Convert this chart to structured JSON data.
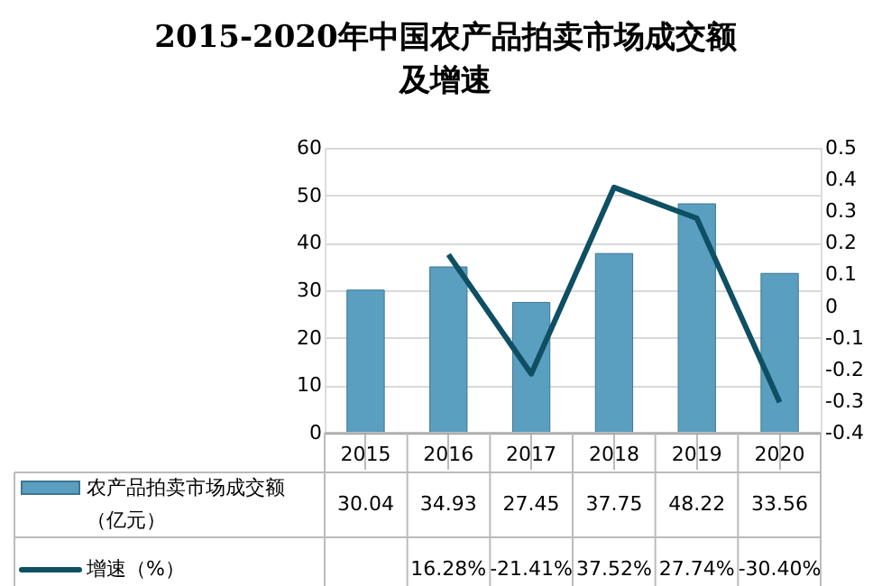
{
  "chart_data": {
    "type": "bar",
    "title": "2015-2020年中国农产品拍卖市场成交额及增速",
    "categories": [
      "2015",
      "2016",
      "2017",
      "2018",
      "2019",
      "2020"
    ],
    "series": [
      {
        "name": "农产品拍卖市场成交额（亿元）",
        "color": "#5a9ec0",
        "values": [
          30.04,
          34.93,
          27.45,
          37.75,
          48.22,
          33.56
        ]
      },
      {
        "name": "增速（%）",
        "type": "line",
        "axis": "y2",
        "color": "#0e4f63",
        "values": [
          null,
          0.1628,
          -0.2141,
          0.3752,
          0.2774,
          -0.304
        ],
        "value_labels": [
          null,
          "16.28%",
          "-21.41%",
          "37.52%",
          "27.74%",
          "-30.40%"
        ]
      }
    ],
    "data_labels": true,
    "ylim": [
      0,
      60
    ],
    "yticks": [
      0,
      10,
      20,
      30,
      40,
      50,
      60
    ],
    "y2lim": [
      -0.4,
      0.5
    ],
    "y2ticks": [
      -0.4,
      -0.3,
      -0.2,
      -0.1,
      0,
      0.1,
      0.2,
      0.3,
      0.4,
      0.5
    ],
    "grid": "y",
    "legend": "bottom",
    "line_style": "solid",
    "marker": "none"
  }
}
